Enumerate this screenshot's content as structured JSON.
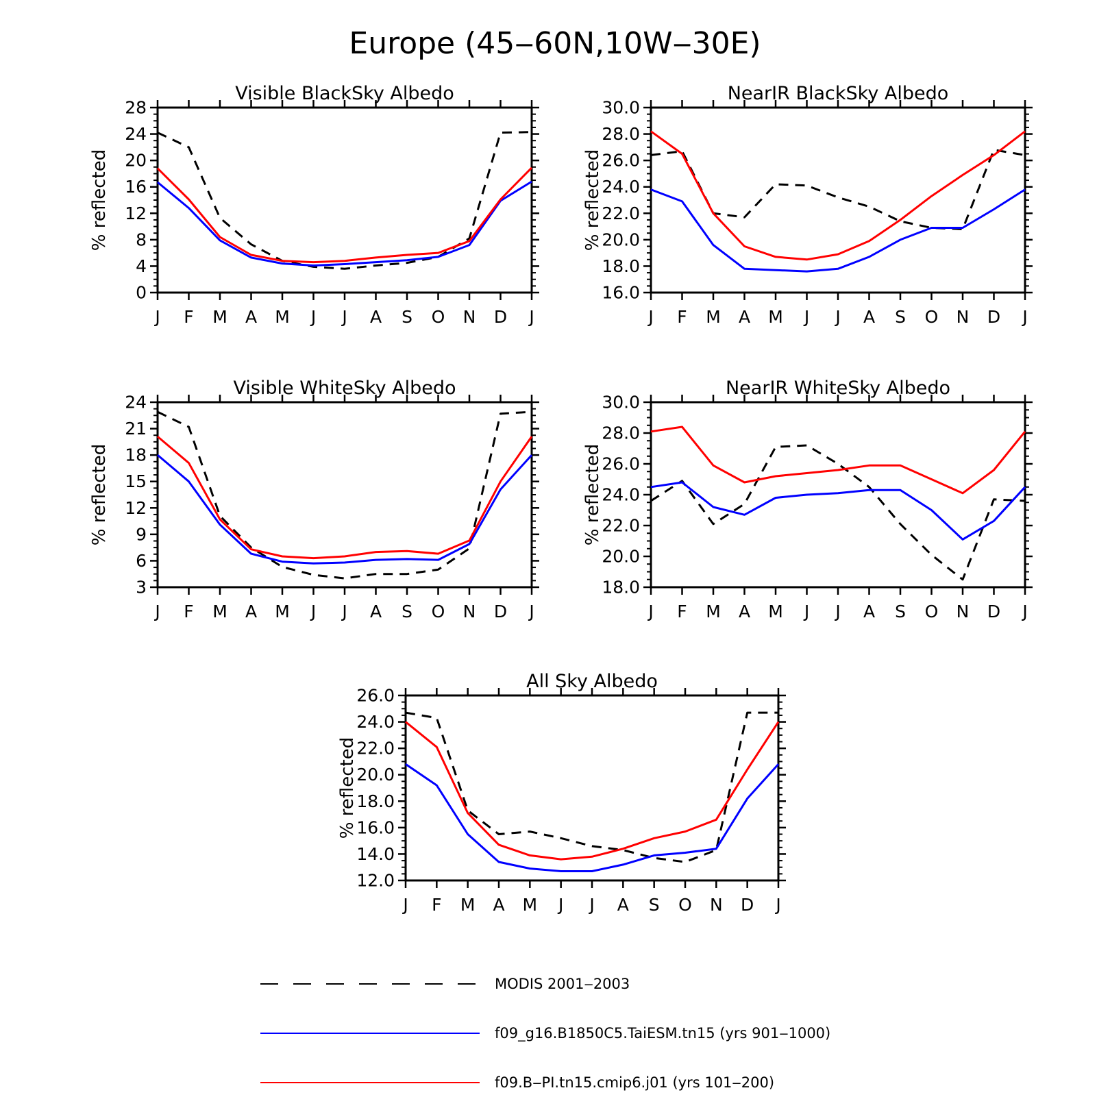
{
  "figure": {
    "title": "Europe (45‒60N,10W‒30E)"
  },
  "months": [
    "J",
    "F",
    "M",
    "A",
    "M",
    "J",
    "J",
    "A",
    "S",
    "O",
    "N",
    "D",
    "J"
  ],
  "colors": {
    "modis": "#000000",
    "taiesm": "#0000ff",
    "cmip6": "#ff0000"
  },
  "legend": [
    {
      "key": "modis",
      "label": "MODIS 2001‒2003",
      "style": "dashed",
      "color": "#000000"
    },
    {
      "key": "taiesm",
      "label": "f09_g16.B1850C5.TaiESM.tn15 (yrs 901‒1000)",
      "style": "solid",
      "color": "#0000ff"
    },
    {
      "key": "cmip6",
      "label": "f09.B‒PI.tn15.cmip6.j01 (yrs 101‒200)",
      "style": "solid",
      "color": "#ff0000"
    }
  ],
  "chart_data": [
    {
      "type": "line",
      "title": "Visible BlackSky Albedo",
      "ylabel": "% reflected",
      "xlabel": "",
      "categories": [
        "J",
        "F",
        "M",
        "A",
        "M",
        "J",
        "J",
        "A",
        "S",
        "O",
        "N",
        "D",
        "J"
      ],
      "ylim": [
        0,
        28
      ],
      "yticks": [
        "0",
        "4",
        "8",
        "12",
        "16",
        "20",
        "24",
        "28"
      ],
      "series": [
        {
          "name": "MODIS 2001‒2003",
          "key": "modis",
          "style": "dashed",
          "values": [
            24.2,
            22.0,
            11.3,
            7.3,
            4.8,
            3.9,
            3.6,
            4.1,
            4.5,
            5.4,
            8.2,
            24.2,
            24.3
          ]
        },
        {
          "name": "f09_g16.B1850C5.TaiESM.tn15 (yrs 901‒1000)",
          "key": "taiesm",
          "style": "solid",
          "values": [
            16.7,
            12.8,
            7.9,
            5.3,
            4.4,
            4.1,
            4.3,
            4.6,
            4.9,
            5.4,
            7.2,
            13.9,
            16.8
          ]
        },
        {
          "name": "f09.B‒PI.tn15.cmip6.j01 (yrs 101‒200)",
          "key": "cmip6",
          "style": "solid",
          "values": [
            18.8,
            14.1,
            8.4,
            5.7,
            4.8,
            4.6,
            4.8,
            5.3,
            5.7,
            6.0,
            7.8,
            14.1,
            18.9
          ]
        }
      ]
    },
    {
      "type": "line",
      "title": "NearIR BlackSky Albedo",
      "ylabel": "% reflected",
      "xlabel": "",
      "categories": [
        "J",
        "F",
        "M",
        "A",
        "M",
        "J",
        "J",
        "A",
        "S",
        "O",
        "N",
        "D",
        "J"
      ],
      "ylim": [
        16.0,
        30.0
      ],
      "yticks": [
        "16.0",
        "18.0",
        "20.0",
        "22.0",
        "24.0",
        "26.0",
        "28.0",
        "30.0"
      ],
      "series": [
        {
          "name": "MODIS 2001‒2003",
          "key": "modis",
          "style": "dashed",
          "values": [
            26.4,
            26.7,
            22.0,
            21.7,
            24.2,
            24.1,
            23.2,
            22.5,
            21.4,
            20.9,
            20.8,
            26.8,
            26.4
          ]
        },
        {
          "name": "f09_g16.B1850C5.TaiESM.tn15 (yrs 901‒1000)",
          "key": "taiesm",
          "style": "solid",
          "values": [
            23.8,
            22.9,
            19.6,
            17.8,
            17.7,
            17.6,
            17.8,
            18.7,
            20.0,
            20.9,
            20.9,
            22.3,
            23.8
          ]
        },
        {
          "name": "f09.B‒PI.tn15.cmip6.j01 (yrs 101‒200)",
          "key": "cmip6",
          "style": "solid",
          "values": [
            28.2,
            26.5,
            22.0,
            19.5,
            18.7,
            18.5,
            18.9,
            19.9,
            21.5,
            23.3,
            24.9,
            26.4,
            28.2
          ]
        }
      ]
    },
    {
      "type": "line",
      "title": "Visible WhiteSky Albedo",
      "ylabel": "% reflected",
      "xlabel": "",
      "categories": [
        "J",
        "F",
        "M",
        "A",
        "M",
        "J",
        "J",
        "A",
        "S",
        "O",
        "N",
        "D",
        "J"
      ],
      "ylim": [
        3,
        24
      ],
      "yticks": [
        "3",
        "6",
        "9",
        "12",
        "15",
        "18",
        "21",
        "24"
      ],
      "series": [
        {
          "name": "MODIS 2001‒2003",
          "key": "modis",
          "style": "dashed",
          "values": [
            22.9,
            21.2,
            11.1,
            7.5,
            5.3,
            4.4,
            4.0,
            4.5,
            4.5,
            5.0,
            7.4,
            22.7,
            22.9
          ]
        },
        {
          "name": "f09_g16.B1850C5.TaiESM.tn15 (yrs 901‒1000)",
          "key": "taiesm",
          "style": "solid",
          "values": [
            18.0,
            15.0,
            10.1,
            6.8,
            5.9,
            5.7,
            5.8,
            6.1,
            6.2,
            6.1,
            7.9,
            14.1,
            18.0
          ]
        },
        {
          "name": "f09.B‒PI.tn15.cmip6.j01 (yrs 101‒200)",
          "key": "cmip6",
          "style": "solid",
          "values": [
            20.1,
            17.1,
            10.7,
            7.3,
            6.5,
            6.3,
            6.5,
            7.0,
            7.1,
            6.8,
            8.3,
            15.0,
            20.1
          ]
        }
      ]
    },
    {
      "type": "line",
      "title": "NearIR WhiteSky Albedo",
      "ylabel": "% reflected",
      "xlabel": "",
      "categories": [
        "J",
        "F",
        "M",
        "A",
        "M",
        "J",
        "J",
        "A",
        "S",
        "O",
        "N",
        "D",
        "J"
      ],
      "ylim": [
        18.0,
        30.0
      ],
      "yticks": [
        "18.0",
        "20.0",
        "22.0",
        "24.0",
        "26.0",
        "28.0",
        "30.0"
      ],
      "series": [
        {
          "name": "MODIS 2001‒2003",
          "key": "modis",
          "style": "dashed",
          "values": [
            23.6,
            24.9,
            22.1,
            23.4,
            27.1,
            27.2,
            26.0,
            24.5,
            22.1,
            20.1,
            18.5,
            23.7,
            23.6
          ]
        },
        {
          "name": "f09_g16.B1850C5.TaiESM.tn15 (yrs 901‒1000)",
          "key": "taiesm",
          "style": "solid",
          "values": [
            24.5,
            24.8,
            23.2,
            22.7,
            23.8,
            24.0,
            24.1,
            24.3,
            24.3,
            23.0,
            21.1,
            22.3,
            24.5
          ]
        },
        {
          "name": "f09.B‒PI.tn15.cmip6.j01 (yrs 101‒200)",
          "key": "cmip6",
          "style": "solid",
          "values": [
            28.1,
            28.4,
            25.9,
            24.8,
            25.2,
            25.4,
            25.6,
            25.9,
            25.9,
            25.0,
            24.1,
            25.6,
            28.1
          ]
        }
      ]
    },
    {
      "type": "line",
      "title": "All Sky Albedo",
      "ylabel": "% reflected",
      "xlabel": "",
      "categories": [
        "J",
        "F",
        "M",
        "A",
        "M",
        "J",
        "J",
        "A",
        "S",
        "O",
        "N",
        "D",
        "J"
      ],
      "ylim": [
        12.0,
        26.0
      ],
      "yticks": [
        "12.0",
        "14.0",
        "16.0",
        "18.0",
        "20.0",
        "22.0",
        "24.0",
        "26.0"
      ],
      "series": [
        {
          "name": "MODIS 2001‒2003",
          "key": "modis",
          "style": "dashed",
          "values": [
            24.7,
            24.3,
            17.3,
            15.5,
            15.7,
            15.2,
            14.6,
            14.3,
            13.7,
            13.4,
            14.3,
            24.7,
            24.7
          ]
        },
        {
          "name": "f09_g16.B1850C5.TaiESM.tn15 (yrs 901‒1000)",
          "key": "taiesm",
          "style": "solid",
          "values": [
            20.8,
            19.2,
            15.5,
            13.4,
            12.9,
            12.7,
            12.7,
            13.2,
            13.9,
            14.1,
            14.4,
            18.2,
            20.8
          ]
        },
        {
          "name": "f09.B‒PI.tn15.cmip6.j01 (yrs 101‒200)",
          "key": "cmip6",
          "style": "solid",
          "values": [
            24.0,
            22.1,
            17.1,
            14.7,
            13.9,
            13.6,
            13.8,
            14.4,
            15.2,
            15.7,
            16.6,
            20.4,
            24.0
          ]
        }
      ]
    }
  ]
}
